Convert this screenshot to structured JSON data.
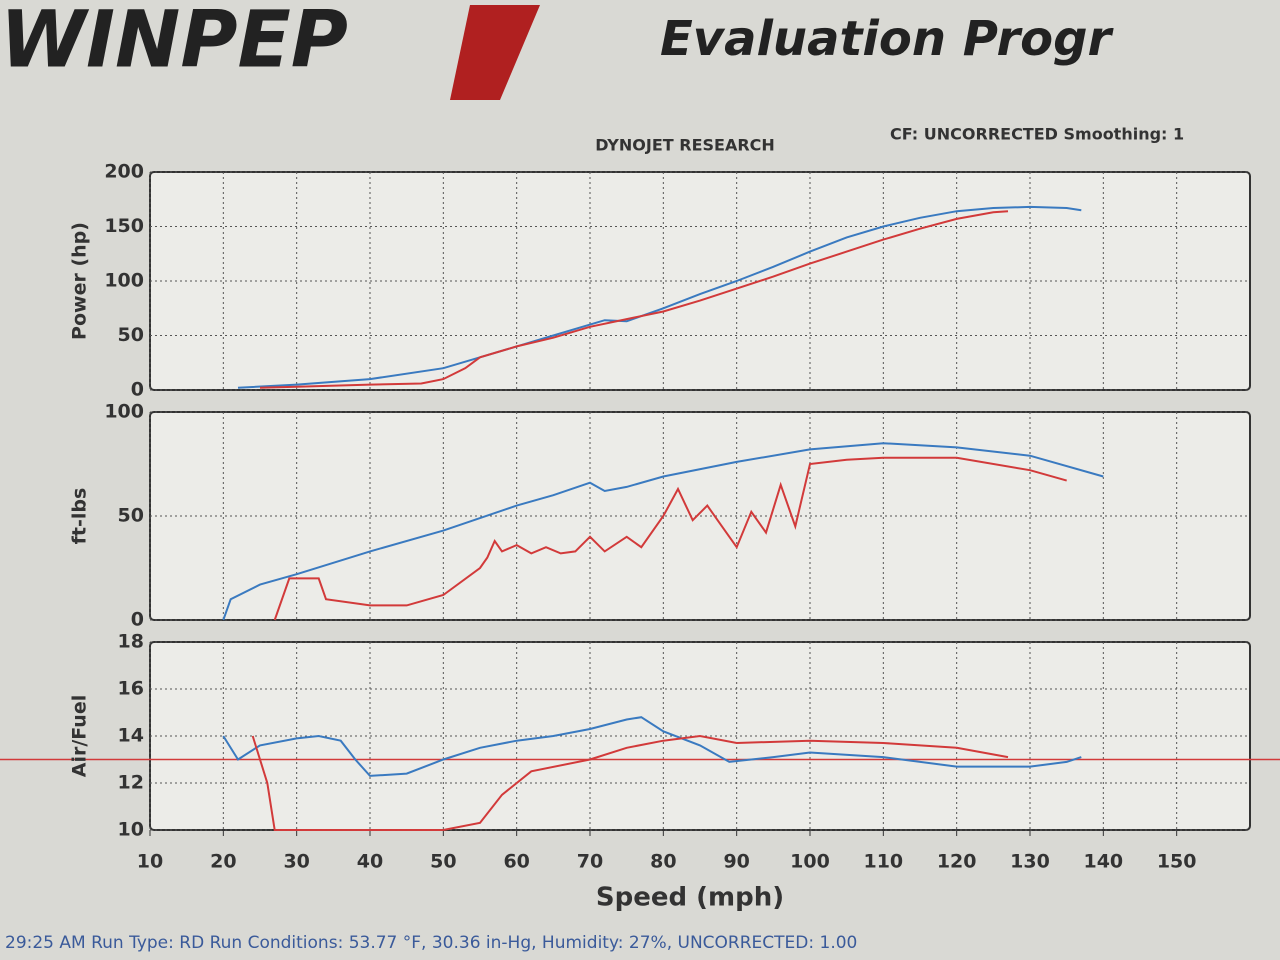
{
  "header": {
    "logo": "WINPEP",
    "title": "Evaluation Progr",
    "subtitle": "DYNOJET RESEARCH",
    "settings": "CF: UNCORRECTED  Smoothing: 1"
  },
  "chart_data": [
    {
      "type": "line",
      "y_label": "Power (hp)",
      "xlim": [
        10,
        160
      ],
      "xticks": [
        10,
        20,
        30,
        40,
        50,
        60,
        70,
        80,
        90,
        100,
        110,
        120,
        130,
        140,
        150
      ],
      "ylim": [
        0,
        200
      ],
      "yticks": [
        0,
        50,
        100,
        150,
        200
      ],
      "grid": true,
      "series": [
        {
          "color": "#3a7ac0",
          "x": [
            22,
            30,
            40,
            50,
            55,
            60,
            65,
            70,
            72,
            75,
            80,
            85,
            90,
            95,
            100,
            105,
            110,
            115,
            120,
            125,
            130,
            135,
            137
          ],
          "values": [
            2,
            5,
            10,
            20,
            30,
            40,
            50,
            60,
            64,
            63,
            75,
            88,
            100,
            113,
            127,
            140,
            150,
            158,
            164,
            167,
            168,
            167,
            165
          ]
        },
        {
          "color": "#d23a3a",
          "x": [
            25,
            30,
            40,
            47,
            50,
            53,
            55,
            60,
            65,
            70,
            75,
            80,
            85,
            90,
            95,
            100,
            105,
            110,
            115,
            120,
            125,
            127
          ],
          "values": [
            2,
            3,
            5,
            6,
            10,
            20,
            30,
            40,
            48,
            58,
            65,
            72,
            82,
            93,
            104,
            116,
            127,
            138,
            148,
            157,
            163,
            164
          ]
        }
      ]
    },
    {
      "type": "line",
      "y_label": "ft-lbs",
      "xlim": [
        10,
        160
      ],
      "xticks": [
        10,
        20,
        30,
        40,
        50,
        60,
        70,
        80,
        90,
        100,
        110,
        120,
        130,
        140,
        150
      ],
      "ylim": [
        0,
        100
      ],
      "yticks": [
        0,
        50,
        100
      ],
      "grid": true,
      "series": [
        {
          "color": "#3a7ac0",
          "x": [
            20,
            21,
            25,
            30,
            40,
            50,
            60,
            65,
            70,
            72,
            75,
            80,
            90,
            100,
            110,
            120,
            130,
            140
          ],
          "values": [
            0,
            10,
            17,
            22,
            33,
            43,
            55,
            60,
            66,
            62,
            64,
            69,
            76,
            82,
            85,
            83,
            79,
            69
          ]
        },
        {
          "color": "#d23a3a",
          "x": [
            27,
            29,
            33,
            34,
            40,
            45,
            50,
            55,
            56,
            57,
            58,
            60,
            62,
            64,
            66,
            68,
            70,
            72,
            75,
            77,
            80,
            82,
            84,
            86,
            88,
            90,
            92,
            94,
            96,
            98,
            100,
            105,
            110,
            120,
            130,
            135
          ],
          "values": [
            0,
            20,
            20,
            10,
            7,
            7,
            12,
            25,
            30,
            38,
            33,
            36,
            32,
            35,
            32,
            33,
            40,
            33,
            40,
            35,
            50,
            63,
            48,
            55,
            45,
            35,
            52,
            42,
            65,
            45,
            75,
            77,
            78,
            78,
            72,
            67
          ]
        }
      ]
    },
    {
      "type": "line",
      "y_label": "Air/Fuel",
      "x_label": "Speed (mph)",
      "xlim": [
        10,
        160
      ],
      "xticks": [
        10,
        20,
        30,
        40,
        50,
        60,
        70,
        80,
        90,
        100,
        110,
        120,
        130,
        140,
        150
      ],
      "ylim": [
        10,
        18
      ],
      "yticks": [
        10,
        12,
        14,
        16,
        18
      ],
      "grid": true,
      "reference_line": {
        "value": 13,
        "color": "#d23a3a"
      },
      "series": [
        {
          "color": "#3a7ac0",
          "x": [
            20,
            22,
            25,
            30,
            33,
            36,
            38,
            40,
            45,
            50,
            55,
            60,
            65,
            70,
            75,
            77,
            80,
            85,
            89,
            95,
            100,
            110,
            120,
            130,
            135,
            137
          ],
          "values": [
            14,
            13,
            13.6,
            13.9,
            14,
            13.8,
            13,
            12.3,
            12.4,
            13,
            13.5,
            13.8,
            14,
            14.3,
            14.7,
            14.8,
            14.2,
            13.6,
            12.9,
            13.1,
            13.3,
            13.1,
            12.7,
            12.7,
            12.9,
            13.1
          ]
        },
        {
          "color": "#d23a3a",
          "x": [
            24,
            26,
            27,
            50,
            55,
            58,
            62,
            70,
            75,
            80,
            85,
            90,
            100,
            110,
            120,
            127
          ],
          "values": [
            14,
            12,
            10,
            10,
            10.3,
            11.5,
            12.5,
            13,
            13.5,
            13.8,
            14,
            13.7,
            13.8,
            13.7,
            13.5,
            13.1
          ]
        }
      ]
    }
  ],
  "footer": "29:25 AM  Run Type: RD  Run Conditions: 53.77 °F, 30.36 in-Hg,  Humidity:  27%, UNCORRECTED: 1.00"
}
